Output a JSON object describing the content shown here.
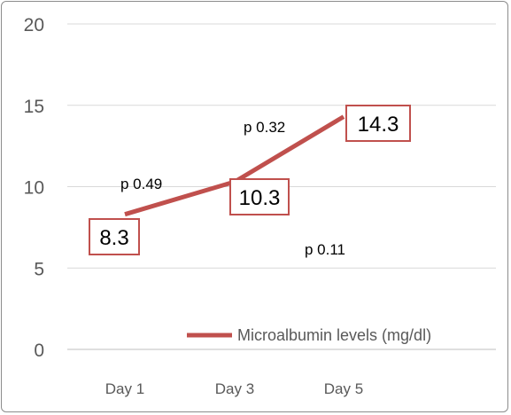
{
  "chart_data": {
    "type": "line",
    "categories": [
      "Day 1",
      "Day 3",
      "Day 5"
    ],
    "series": [
      {
        "name": "Microalbumin levels (mg/dl)",
        "values": [
          8.3,
          10.3,
          14.3
        ],
        "data_labels": [
          "8.3",
          "10.3",
          "14.3"
        ],
        "color": "#c0504d"
      }
    ],
    "ylim": [
      0,
      20
    ],
    "yticks": [
      "0",
      "5",
      "10",
      "15",
      "20"
    ],
    "grid": true,
    "legend": "bottom-right",
    "annotations": [
      {
        "text": "p 0.49"
      },
      {
        "text": "p 0.32"
      },
      {
        "text": "p 0.11"
      }
    ],
    "title": "",
    "xlabel": "",
    "ylabel": ""
  }
}
